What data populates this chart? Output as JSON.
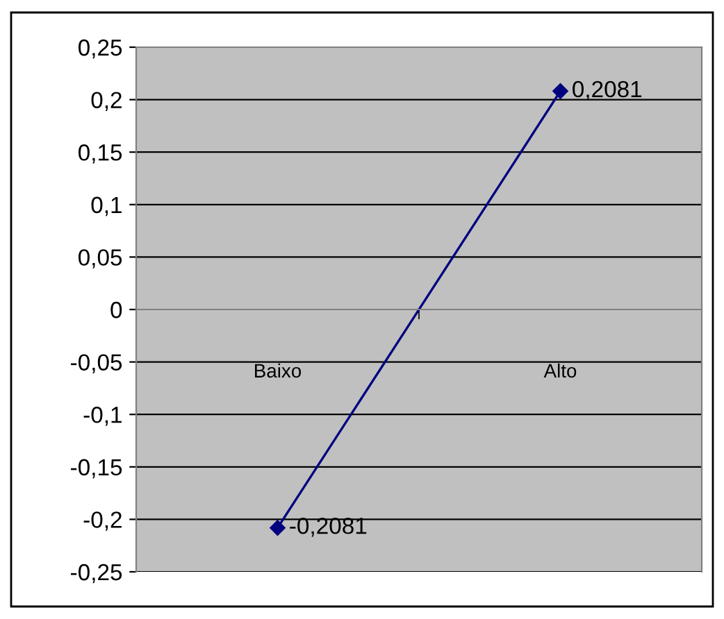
{
  "chart_data": {
    "type": "line",
    "categories": [
      "Baixo",
      "Alto"
    ],
    "series": [
      {
        "color": "#000080",
        "values": [
          -0.2081,
          0.2081
        ],
        "value_labels": [
          "-0,2081",
          "0,2081"
        ]
      }
    ],
    "ylim": [
      -0.25,
      0.25
    ],
    "yticks": [
      {
        "value": -0.25,
        "label": "-0,25"
      },
      {
        "value": -0.2,
        "label": "-0,2"
      },
      {
        "value": -0.15,
        "label": "-0,15"
      },
      {
        "value": -0.1,
        "label": "-0,1"
      },
      {
        "value": -0.05,
        "label": "-0,05"
      },
      {
        "value": 0,
        "label": "0"
      },
      {
        "value": 0.05,
        "label": "0,05"
      },
      {
        "value": 0.1,
        "label": "0,1"
      },
      {
        "value": 0.15,
        "label": "0,15"
      },
      {
        "value": 0.2,
        "label": "0,2"
      },
      {
        "value": 0.25,
        "label": "0,25"
      }
    ],
    "grid": "y",
    "marker": "diamond",
    "line_style": "solid",
    "legend": false
  }
}
